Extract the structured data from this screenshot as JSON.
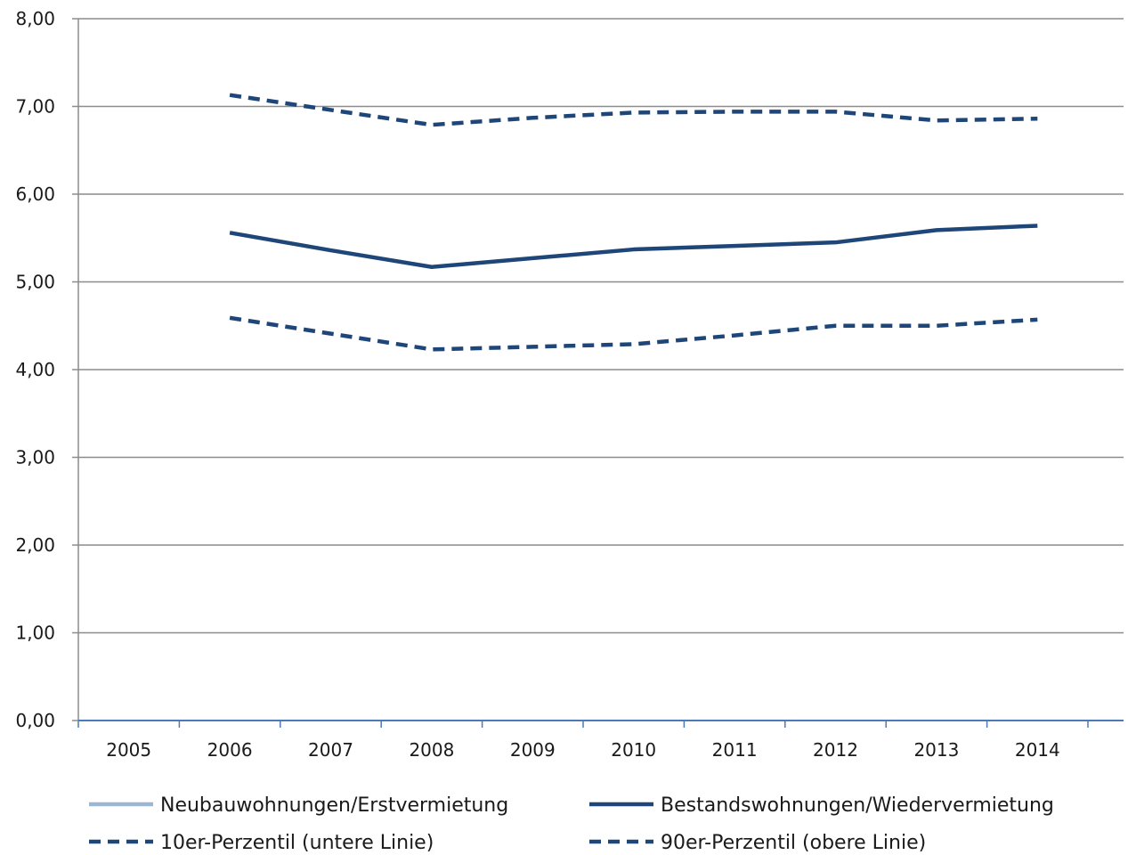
{
  "chart_data": {
    "type": "line",
    "title": "",
    "xlabel": "",
    "ylabel": "",
    "categories": [
      "2005",
      "2006",
      "2007",
      "2008",
      "2009",
      "2010",
      "2011",
      "2012",
      "2013",
      "2014"
    ],
    "ylim": [
      0,
      8
    ],
    "y_ticks": [
      "0,00",
      "1,00",
      "2,00",
      "3,00",
      "4,00",
      "5,00",
      "6,00",
      "7,00",
      "8,00"
    ],
    "grid": true,
    "legend_position": "bottom",
    "series": [
      {
        "name": "Neubauwohnungen/Erstvermietung",
        "color": "#9bb7d4",
        "style": "solid",
        "values": [
          null,
          null,
          null,
          null,
          null,
          null,
          null,
          null,
          null,
          null
        ]
      },
      {
        "name": "Bestandswohnungen/Wiedervermietung",
        "color": "#1f4678",
        "style": "solid",
        "values": [
          null,
          5.56,
          5.36,
          5.17,
          5.27,
          5.37,
          5.41,
          5.45,
          5.59,
          5.64
        ]
      },
      {
        "name": "10er-Perzentil (untere Linie)",
        "color": "#1f4678",
        "style": "dashed",
        "values": [
          null,
          4.59,
          4.41,
          4.23,
          4.26,
          4.29,
          4.39,
          4.5,
          4.5,
          4.57
        ]
      },
      {
        "name": "90er-Perzentil (obere Linie)",
        "color": "#1f4678",
        "style": "dashed",
        "values": [
          null,
          7.13,
          6.96,
          6.79,
          6.87,
          6.93,
          6.94,
          6.94,
          6.84,
          6.86
        ]
      }
    ]
  }
}
